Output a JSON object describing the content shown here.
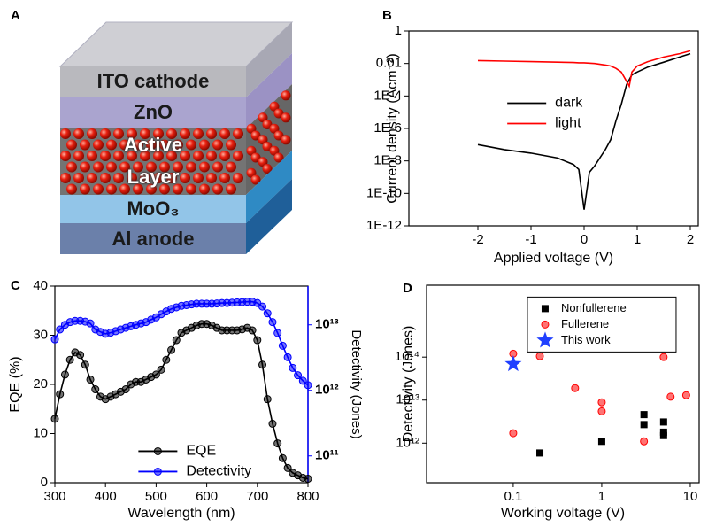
{
  "diagram": {
    "panel_label": "A",
    "layers": [
      "ITO cathode",
      "ZnO",
      "Active Layer",
      "MoO₃",
      "Al anode"
    ]
  },
  "chart_data": [
    {
      "type": "line",
      "panel_label": "B",
      "x_label": "Applied voltage (V)",
      "y_label": "Current density (Acm⁻²)",
      "x": [
        -2,
        -1.5,
        -1,
        -0.5,
        -0.2,
        -0.1,
        0,
        0.1,
        0.2,
        0.4,
        0.5,
        0.6,
        0.7,
        0.8,
        0.85,
        0.9,
        1.0,
        1.2,
        1.5,
        1.8,
        2.0
      ],
      "series": [
        {
          "name": "dark",
          "color": "#000000",
          "values": [
            1e-07,
            5e-08,
            3e-08,
            1.5e-08,
            6e-09,
            3e-09,
            1e-11,
            2e-09,
            5e-09,
            5e-08,
            2e-07,
            3e-06,
            3e-05,
            0.0005,
            0.001,
            0.002,
            0.003,
            0.006,
            0.012,
            0.025,
            0.04
          ]
        },
        {
          "name": "light",
          "color": "#ff0000",
          "values": [
            0.015,
            0.014,
            0.013,
            0.012,
            0.0115,
            0.011,
            0.011,
            0.0105,
            0.01,
            0.008,
            0.007,
            0.005,
            0.003,
            0.0008,
            0.0004,
            0.003,
            0.007,
            0.013,
            0.025,
            0.04,
            0.06
          ]
        }
      ],
      "xlim": [
        -3.3,
        2.15
      ],
      "xticks": [
        -2,
        -1,
        0,
        1,
        2
      ],
      "ylim": [
        1e-12,
        1
      ],
      "y_scale": "log",
      "yticks": [
        1,
        0.01,
        {
          "value": 0.0001,
          "label": "1E-4"
        },
        {
          "value": 1e-06,
          "label": "1E-6"
        },
        {
          "value": 1e-08,
          "label": "1E-8"
        },
        {
          "value": 1e-10,
          "label": "1E-10"
        },
        {
          "value": 1e-12,
          "label": "1E-12"
        }
      ],
      "legend": "center left"
    },
    {
      "type": "line",
      "panel_label": "C",
      "x_label": "Wavelength (nm)",
      "y_label": "EQE (%)",
      "y2_label": "Detectivity (Jones)",
      "x": [
        300,
        310,
        320,
        330,
        340,
        350,
        360,
        370,
        380,
        390,
        400,
        410,
        420,
        430,
        440,
        450,
        460,
        470,
        480,
        490,
        500,
        510,
        520,
        530,
        540,
        550,
        560,
        570,
        580,
        590,
        600,
        610,
        620,
        630,
        640,
        650,
        660,
        670,
        680,
        690,
        700,
        710,
        720,
        730,
        740,
        750,
        760,
        770,
        780,
        790,
        800
      ],
      "series": [
        {
          "name": "EQE",
          "color": "#000000",
          "marker": "circle",
          "values": [
            13,
            18,
            22,
            25,
            26.5,
            26,
            24,
            21,
            19,
            17.5,
            17,
            17.5,
            18,
            18.5,
            19,
            20,
            20.5,
            20.5,
            21,
            21.5,
            22,
            23,
            25,
            27,
            29,
            30.5,
            31,
            31.5,
            32,
            32.3,
            32.3,
            32,
            31.5,
            31,
            31,
            31,
            31,
            31.2,
            31.5,
            31,
            29,
            24,
            17,
            12,
            8,
            5,
            3,
            2,
            1.5,
            1,
            0.8
          ]
        },
        {
          "name": "Detectivity",
          "color": "#0000ff",
          "marker": "circle",
          "axis": "y2",
          "values": [
            6000000000000.0,
            8500000000000.0,
            10000000000000.0,
            11000000000000.0,
            11500000000000.0,
            11500000000000.0,
            11200000000000.0,
            10500000000000.0,
            8500000000000.0,
            7800000000000.0,
            7300000000000.0,
            7600000000000.0,
            8000000000000.0,
            8500000000000.0,
            9000000000000.0,
            9500000000000.0,
            10000000000000.0,
            10500000000000.0,
            11000000000000.0,
            12000000000000.0,
            13000000000000.0,
            14500000000000.0,
            16000000000000.0,
            17500000000000.0,
            18500000000000.0,
            19500000000000.0,
            20000000000000.0,
            20500000000000.0,
            21000000000000.0,
            21000000000000.0,
            21000000000000.0,
            21000000000000.0,
            21200000000000.0,
            21500000000000.0,
            21500000000000.0,
            21800000000000.0,
            22000000000000.0,
            22200000000000.0,
            22500000000000.0,
            22500000000000.0,
            21500000000000.0,
            19000000000000.0,
            15000000000000.0,
            11000000000000.0,
            7500000000000.0,
            4800000000000.0,
            3200000000000.0,
            2200000000000.0,
            1700000000000.0,
            1400000000000.0,
            1200000000000.0
          ]
        }
      ],
      "xlim": [
        300,
        800
      ],
      "xticks": [
        300,
        400,
        500,
        600,
        700,
        800
      ],
      "ylim": [
        0,
        40
      ],
      "yticks": [
        0,
        10,
        20,
        30,
        40
      ],
      "y2lim": [
        39000000000.0,
        39000000000000.0
      ],
      "y2_scale": "log",
      "y2ticks": [
        {
          "value": 100000000000.0,
          "label": "10¹¹"
        },
        {
          "value": 1000000000000.0,
          "label": "10¹²"
        },
        {
          "value": 10000000000000.0,
          "label": "10¹³"
        }
      ],
      "legend": "lower left"
    },
    {
      "type": "scatter",
      "panel_label": "D",
      "x_label": "Working voltage (V)",
      "y_label": "Detectivity (Jones)",
      "series": [
        {
          "name": "Nonfullerene",
          "color": "#000000",
          "marker": "square",
          "x": [
            0.2,
            1,
            3,
            3,
            5,
            5,
            5
          ],
          "values": [
            590000000000.0,
            1100000000000.0,
            4600000000000.0,
            2700000000000.0,
            3100000000000.0,
            1800000000000.0,
            1500000000000.0
          ]
        },
        {
          "name": "Fullerene",
          "color": "#ff0000",
          "marker": "circle",
          "x": [
            0.1,
            0.1,
            0.2,
            0.5,
            1,
            1,
            3,
            5,
            6,
            9
          ],
          "values": [
            120000000000000.0,
            1700000000000.0,
            105000000000000.0,
            19000000000000.0,
            8900000000000.0,
            5500000000000.0,
            1100000000000.0,
            100000000000000.0,
            12000000000000.0,
            13000000000000.0
          ]
        },
        {
          "name": "This work",
          "color": "#1f3fff",
          "marker": "star",
          "x": [
            0.1
          ],
          "values": [
            69000000000000.0
          ]
        }
      ],
      "xlim": [
        0.0105,
        12.6
      ],
      "x_scale": "log",
      "xticks": [
        0.1,
        1,
        10
      ],
      "ylim": [
        120000000000.0,
        4700000000000000.0
      ],
      "y_scale": "log",
      "yticks": [
        {
          "value": 1000000000000.0,
          "label": "10¹²"
        },
        {
          "value": 10000000000000.0,
          "label": "10¹³"
        },
        {
          "value": 100000000000000.0,
          "label": "10¹⁴"
        }
      ],
      "legend": "upper center"
    }
  ]
}
